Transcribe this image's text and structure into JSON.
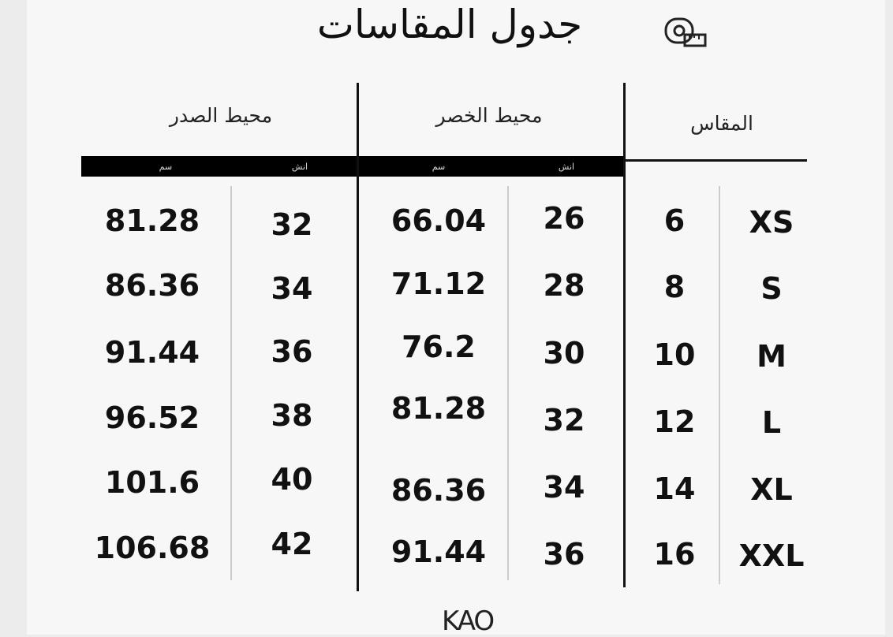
{
  "title": "جدول المقاسات",
  "icon": "measuring-tape-icon",
  "headers": {
    "size": "المقاس",
    "waist": "محيط الخصر",
    "chest": "محيط الصدر"
  },
  "units": {
    "inch": "انش",
    "cm": "سم"
  },
  "rows": [
    {
      "size": "XS",
      "size_num": "6",
      "waist_in": "26",
      "waist_cm": "66.04",
      "chest_in": "32",
      "chest_cm": "81.28"
    },
    {
      "size": "S",
      "size_num": "8",
      "waist_in": "28",
      "waist_cm": "71.12",
      "chest_in": "34",
      "chest_cm": "86.36"
    },
    {
      "size": "M",
      "size_num": "10",
      "waist_in": "30",
      "waist_cm": "76.2",
      "chest_in": "36",
      "chest_cm": "91.44"
    },
    {
      "size": "L",
      "size_num": "12",
      "waist_in": "32",
      "waist_cm": "81.28",
      "chest_in": "38",
      "chest_cm": "96.52"
    },
    {
      "size": "XL",
      "size_num": "14",
      "waist_in": "34",
      "waist_cm": "86.36",
      "chest_in": "40",
      "chest_cm": "101.6"
    },
    {
      "size": "XXL",
      "size_num": "16",
      "waist_in": "36",
      "waist_cm": "91.44",
      "chest_in": "42",
      "chest_cm": "106.68"
    }
  ],
  "logo": "KAO"
}
